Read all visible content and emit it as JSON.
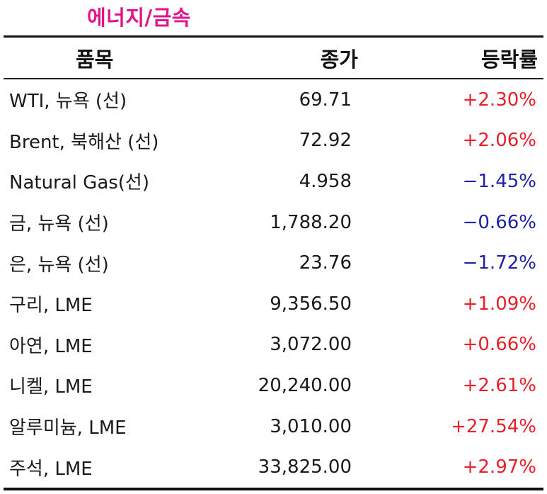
{
  "title": "에너지/금속",
  "colors": {
    "title": "#e0158c",
    "positive": "#e8202a",
    "negative": "#1e22a8"
  },
  "headers": {
    "name": "품목",
    "price": "종가",
    "change": "등락률"
  },
  "rows": [
    {
      "name": "WTI, 뉴욕 (선)",
      "price": "69.71",
      "change": "+2.30%",
      "direction": "up"
    },
    {
      "name": "Brent, 북해산 (선)",
      "price": "72.92",
      "change": "+2.06%",
      "direction": "up"
    },
    {
      "name": "Natural Gas(선)",
      "price": "4.958",
      "change": "−1.45%",
      "direction": "down"
    },
    {
      "name": "금, 뉴욕  (선)",
      "price": "1,788.20",
      "change": "−0.66%",
      "direction": "down"
    },
    {
      "name": "은, 뉴욕  (선)",
      "price": "23.76",
      "change": "−1.72%",
      "direction": "down"
    },
    {
      "name": "구리, LME",
      "price": "9,356.50",
      "change": "+1.09%",
      "direction": "up"
    },
    {
      "name": "아연, LME",
      "price": "3,072.00",
      "change": "+0.66%",
      "direction": "up"
    },
    {
      "name": "니켈, LME",
      "price": "20,240.00",
      "change": "+2.61%",
      "direction": "up"
    },
    {
      "name": "알루미늄, LME",
      "price": "3,010.00",
      "change": "+27.54%",
      "direction": "up"
    },
    {
      "name": "주석, LME",
      "price": "33,825.00",
      "change": "+2.97%",
      "direction": "up"
    }
  ]
}
